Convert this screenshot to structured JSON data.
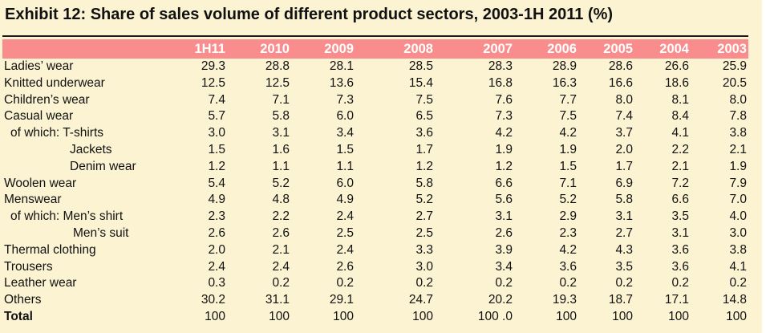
{
  "exhibit": {
    "title": "Exhibit 12: Share of sales volume of different product sectors, 2003-1H 2011 (%)"
  },
  "table": {
    "headers": [
      "1H11",
      "2010",
      "2009",
      "2008",
      "2007",
      "2006",
      "2005",
      "2004",
      "2003"
    ],
    "rows": [
      {
        "label": "Ladies’ wear",
        "values": [
          "29.3",
          "28.8",
          "28.1",
          "28.5",
          "28.3",
          "28.9",
          "28.6",
          "26.6",
          "25.9"
        ]
      },
      {
        "label": "Knitted underwear",
        "values": [
          "12.5",
          "12.5",
          "13.6",
          "15.4",
          "16.8",
          "16.3",
          "16.6",
          "18.6",
          "20.5"
        ]
      },
      {
        "label": "Children’s wear",
        "values": [
          "7.4",
          "7.1",
          "7.3",
          "7.5",
          "7.6",
          "7.7",
          "8.0",
          "8.1",
          "8.0"
        ]
      },
      {
        "label": "Casual wear",
        "values": [
          "5.7",
          "5.8",
          "6.0",
          "6.5",
          "7.3",
          "7.5",
          "7.4",
          "8.4",
          "7.8"
        ]
      },
      {
        "label": "of which:  T-shirts",
        "values": [
          "3.0",
          "3.1",
          "3.4",
          "3.6",
          "4.2",
          "4.2",
          "3.7",
          "4.1",
          "3.8"
        ]
      },
      {
        "label": "Jackets",
        "values": [
          "1.5",
          "1.6",
          "1.5",
          "1.7",
          "1.9",
          "1.9",
          "2.0",
          "2.2",
          "2.1"
        ]
      },
      {
        "label": "Denim wear",
        "values": [
          "1.2",
          "1.1",
          "1.1",
          "1.2",
          "1.2",
          "1.5",
          "1.7",
          "2.1",
          "1.9"
        ]
      },
      {
        "label": "Woolen wear",
        "values": [
          "5.4",
          "5.2",
          "6.0",
          "5.8",
          "6.6",
          "7.1",
          "6.9",
          "7.2",
          "7.9"
        ]
      },
      {
        "label": "Menswear",
        "values": [
          "4.9",
          "4.8",
          "4.9",
          "5.2",
          "5.6",
          "5.2",
          "5.8",
          "6.6",
          "7.0"
        ]
      },
      {
        "label": "of which:  Men’s shirt",
        "values": [
          "2.3",
          "2.2",
          "2.4",
          "2.7",
          "3.1",
          "2.9",
          "3.1",
          "3.5",
          "4.0"
        ]
      },
      {
        "label": "Men’s suit",
        "values": [
          "2.6",
          "2.6",
          "2.5",
          "2.5",
          "2.6",
          "2.3",
          "2.7",
          "3.1",
          "3.0"
        ]
      },
      {
        "label": "Thermal clothing",
        "values": [
          "2.0",
          "2.1",
          "2.4",
          "3.3",
          "3.9",
          "4.2",
          "4.3",
          "3.6",
          "3.8"
        ]
      },
      {
        "label": "Trousers",
        "values": [
          "2.4",
          "2.4",
          "2.6",
          "3.0",
          "3.4",
          "3.6",
          "3.5",
          "3.6",
          "4.1"
        ]
      },
      {
        "label": "Leather wear",
        "values": [
          "0.3",
          "0.2",
          "0.2",
          "0.2",
          "0.2",
          "0.2",
          "0.2",
          "0.2",
          "0.2"
        ]
      },
      {
        "label": "Others",
        "values": [
          "30.2",
          "31.1",
          "29.1",
          "24.7",
          "20.2",
          "19.3",
          "18.7",
          "17.1",
          "14.8"
        ]
      },
      {
        "label": "Total",
        "values": [
          "100",
          "100",
          "100",
          "100",
          "100 .0",
          "100",
          "100",
          "100",
          "100"
        ]
      }
    ]
  },
  "colors": {
    "background": "#fbf3d2",
    "header_band": "#f98c8d",
    "header_text": "#ffffff"
  }
}
